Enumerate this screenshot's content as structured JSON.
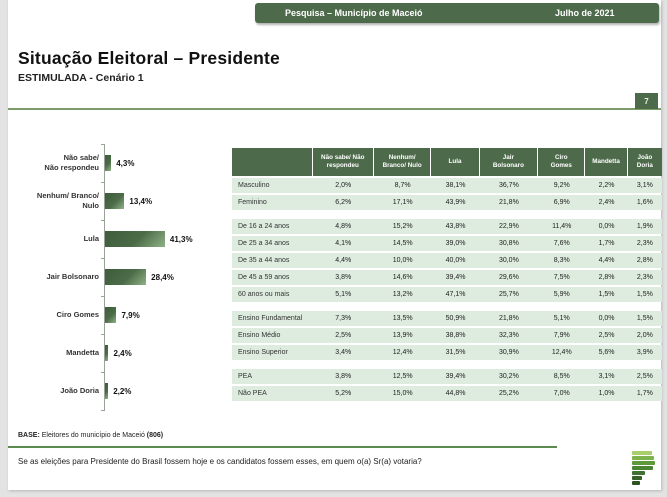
{
  "top_bar": {
    "left_text": "Pesquisa – Município de Maceió",
    "right_text": "Julho de 2021"
  },
  "page": {
    "title": "Situação Eleitoral – Presidente",
    "subtitle": "ESTIMULADA - Cenário 1",
    "page_number": "7"
  },
  "chart_data": {
    "type": "bar",
    "orientation": "horizontal",
    "categories": [
      "Não sabe/\nNão respondeu",
      "Nenhum/ Branco/\nNulo",
      "Lula",
      "Jair Bolsonaro",
      "Ciro Gomes",
      "Mandetta",
      "João Doria"
    ],
    "values": [
      4.3,
      13.4,
      41.3,
      28.4,
      7.9,
      2.4,
      2.2
    ],
    "value_labels": [
      "4,3%",
      "13,4%",
      "41,3%",
      "28,4%",
      "7,9%",
      "2,4%",
      "2,2%"
    ],
    "xlim": [
      0,
      45
    ],
    "legend": "none",
    "grid": "off"
  },
  "table": {
    "columns": [
      "Não sabe/ Não\nrespondeu",
      "Nenhum/\nBranco/ Nulo",
      "Lula",
      "Jair\nBolsonaro",
      "Ciro\nGomes",
      "Mandetta",
      "João Doria"
    ],
    "groups": [
      [
        {
          "label": "Masculino",
          "values": [
            "2,0%",
            "8,7%",
            "38,1%",
            "36,7%",
            "9,2%",
            "2,2%",
            "3,1%"
          ]
        },
        {
          "label": "Feminino",
          "values": [
            "6,2%",
            "17,1%",
            "43,9%",
            "21,8%",
            "6,9%",
            "2,4%",
            "1,6%"
          ]
        }
      ],
      [
        {
          "label": "De 16 a 24 anos",
          "values": [
            "4,8%",
            "15,2%",
            "43,8%",
            "22,9%",
            "11,4%",
            "0,0%",
            "1,9%"
          ]
        },
        {
          "label": "De 25 a 34 anos",
          "values": [
            "4,1%",
            "14,5%",
            "39,0%",
            "30,8%",
            "7,6%",
            "1,7%",
            "2,3%"
          ]
        },
        {
          "label": "De 35 a 44 anos",
          "values": [
            "4,4%",
            "10,0%",
            "40,0%",
            "30,0%",
            "8,3%",
            "4,4%",
            "2,8%"
          ]
        },
        {
          "label": "De 45 a 59 anos",
          "values": [
            "3,8%",
            "14,6%",
            "39,4%",
            "29,6%",
            "7,5%",
            "2,8%",
            "2,3%"
          ]
        },
        {
          "label": "60 anos ou mais",
          "values": [
            "5,1%",
            "13,2%",
            "47,1%",
            "25,7%",
            "5,9%",
            "1,5%",
            "1,5%"
          ]
        }
      ],
      [
        {
          "label": "Ensino Fundamental",
          "values": [
            "7,3%",
            "13,5%",
            "50,9%",
            "21,8%",
            "5,1%",
            "0,0%",
            "1,5%"
          ]
        },
        {
          "label": "Ensino Médio",
          "values": [
            "2,5%",
            "13,9%",
            "38,8%",
            "32,3%",
            "7,9%",
            "2,5%",
            "2,0%"
          ]
        },
        {
          "label": "Ensino Superior",
          "values": [
            "3,4%",
            "12,4%",
            "31,5%",
            "30,9%",
            "12,4%",
            "5,6%",
            "3,9%"
          ]
        }
      ],
      [
        {
          "label": "PEA",
          "values": [
            "3,8%",
            "12,5%",
            "39,4%",
            "30,2%",
            "8,5%",
            "3,1%",
            "2,5%"
          ]
        },
        {
          "label": "Não PEA",
          "values": [
            "5,2%",
            "15,0%",
            "44,8%",
            "25,2%",
            "7,0%",
            "1,0%",
            "1,7%"
          ]
        }
      ]
    ]
  },
  "footer": {
    "base_label": "BASE:",
    "base_text": " Eleitores do município de Maceió ",
    "base_count": "(806)",
    "question": "Se as eleições para Presidente do Brasil fossem hoje e os candidatos fossem esses, em quem o(a) Sr(a) votaria?"
  },
  "colors": {
    "dark_green": "#4d6b4a",
    "row_green": "#ddecdf",
    "rule_green": "#7c9c6a",
    "bar_gradient_start": "#3d5c3b",
    "bar_gradient_end": "#8fb287"
  }
}
